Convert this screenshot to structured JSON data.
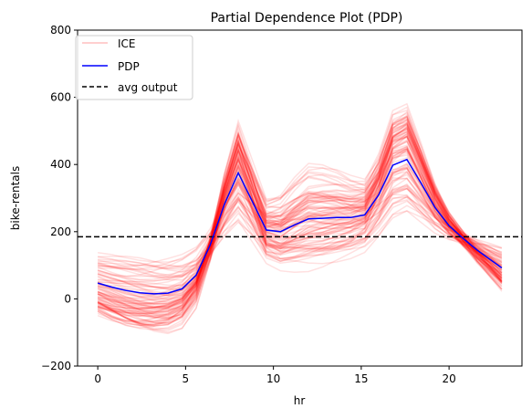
{
  "chart_data": {
    "type": "line",
    "title": "Partial Dependence Plot (PDP)",
    "xlabel": "hr",
    "ylabel": "bike-rentals",
    "xlim": [
      -1.15,
      24.15
    ],
    "ylim": [
      -200,
      800
    ],
    "xticks": [
      0,
      5,
      10,
      15,
      20
    ],
    "yticks": [
      -200,
      0,
      200,
      400,
      600,
      800
    ],
    "grid": false,
    "legend_position": "top-left",
    "legend": [
      {
        "label": "ICE",
        "color": "#ff0000",
        "style": "faint-solid"
      },
      {
        "label": "PDP",
        "color": "#0000ff",
        "style": "solid"
      },
      {
        "label": "avg output",
        "color": "#000000",
        "style": "dashed"
      }
    ],
    "pdp": {
      "name": "PDP",
      "color": "#0000ff",
      "x": [
        0,
        0.8,
        1.6,
        2.4,
        3.2,
        4,
        4.8,
        5.6,
        6.4,
        7.2,
        8,
        8.8,
        9.6,
        10.4,
        11.2,
        12,
        12.8,
        13.6,
        14.4,
        15.2,
        16,
        16.8,
        17.6,
        18.4,
        19.2,
        20,
        20.8,
        21.6,
        22.4,
        23
      ],
      "y": [
        47,
        35,
        25,
        18,
        15,
        17,
        30,
        70,
        160,
        280,
        375,
        290,
        205,
        200,
        220,
        238,
        240,
        242,
        242,
        250,
        310,
        398,
        415,
        345,
        272,
        218,
        180,
        145,
        115,
        92
      ]
    },
    "avg_output": {
      "name": "avg output",
      "y": 185,
      "color": "#000000"
    },
    "ice": {
      "name": "ICE",
      "color": "#ff0000",
      "opacity": 0.12,
      "count": 100
    }
  }
}
